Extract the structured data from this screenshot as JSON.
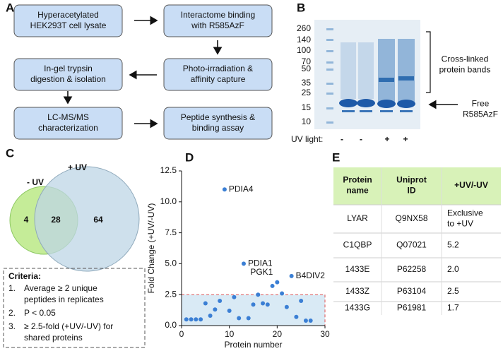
{
  "panel_a": {
    "label": "A",
    "steps": [
      [
        "Hyperacetylated",
        "HEK293T cell lysate"
      ],
      [
        "Interactome binding",
        "with R585AzF"
      ],
      [
        "Photo-irradiation &",
        "affinity capture"
      ],
      [
        "In-gel trypsin",
        "digestion & isolation"
      ],
      [
        "LC-MS/MS",
        "characterization"
      ],
      [
        "Peptide synthesis &",
        "binding assay"
      ]
    ]
  },
  "panel_b": {
    "label": "B",
    "ladder": [
      "260",
      "140",
      "100",
      "70",
      "50",
      "35",
      "25",
      "15",
      "10"
    ],
    "bracket_label": [
      "Cross-linked",
      "protein bands"
    ],
    "arrow_label": [
      "Free",
      "R585AzF"
    ],
    "uv_label": "UV light:",
    "uv_marks": [
      "-",
      "-",
      "+",
      "+"
    ]
  },
  "panel_c": {
    "label": "C",
    "minus_uv": "- UV",
    "plus_uv": "+ UV",
    "only_minus": "4",
    "shared": "28",
    "only_plus": "64",
    "criteria_title": "Criteria:",
    "criteria": [
      {
        "num": "1.",
        "lines": [
          "Average ≥ 2 unique",
          "peptides in replicates"
        ]
      },
      {
        "num": "2.",
        "lines": [
          "P < 0.05"
        ]
      },
      {
        "num": "3.",
        "lines": [
          "≥ 2.5-fold (+UV/-UV) for",
          "shared proteins"
        ]
      }
    ]
  },
  "chart_data": {
    "type": "scatter",
    "label": "D",
    "xlabel": "Protein number",
    "ylabel": "Fold Change (+UV/-UV)",
    "x": [
      1,
      2,
      3,
      4,
      5,
      6,
      7,
      8,
      9,
      10,
      11,
      12,
      13,
      14,
      15,
      16,
      17,
      18,
      19,
      20,
      21,
      22,
      23,
      24,
      25,
      26,
      27
    ],
    "values": [
      0.5,
      0.5,
      0.5,
      0.5,
      1.8,
      0.8,
      1.3,
      2.0,
      11.0,
      1.2,
      2.3,
      0.6,
      5.0,
      0.6,
      1.7,
      2.5,
      1.8,
      1.7,
      3.2,
      3.5,
      2.6,
      1.5,
      4.0,
      0.7,
      2.0,
      0.4,
      0.4
    ],
    "point_labels": [
      null,
      null,
      null,
      null,
      null,
      null,
      null,
      null,
      "PDIA4",
      null,
      null,
      null,
      "PDIA1",
      null,
      null,
      null,
      null,
      null,
      null,
      "PGK1",
      null,
      null,
      "B4DIV2",
      null,
      null,
      null,
      null
    ],
    "color": "#3b7fd4",
    "highlight_ylim": [
      0,
      2.5
    ],
    "xlim": [
      0,
      30
    ],
    "xticks": [
      0,
      10,
      20,
      30
    ],
    "ylim": [
      0,
      12.5
    ],
    "yticks": [
      {
        "value": 0,
        "label": "0.0"
      },
      2.5,
      {
        "value": 5,
        "label": "5.0"
      },
      7.5,
      {
        "value": 10,
        "label": "10.0"
      },
      12.5
    ]
  },
  "panel_e": {
    "label": "E",
    "header": [
      [
        "Protein",
        "name"
      ],
      [
        "Uniprot",
        "ID"
      ],
      [
        "+UV/-UV"
      ]
    ],
    "rows": [
      [
        [
          "LYAR"
        ],
        [
          "Q9NX58"
        ],
        [
          "Exclusive",
          "to +UV"
        ]
      ],
      [
        [
          "C1QBP"
        ],
        [
          "Q07021"
        ],
        [
          "5.2"
        ]
      ],
      [
        [
          "1433E"
        ],
        [
          "P62258"
        ],
        [
          "2.0"
        ]
      ],
      [
        [
          "1433Z"
        ],
        [
          "P63104"
        ],
        [
          "2.5"
        ]
      ],
      [
        [
          "1433G"
        ],
        [
          "P61981"
        ],
        [
          "1.7"
        ]
      ]
    ]
  }
}
